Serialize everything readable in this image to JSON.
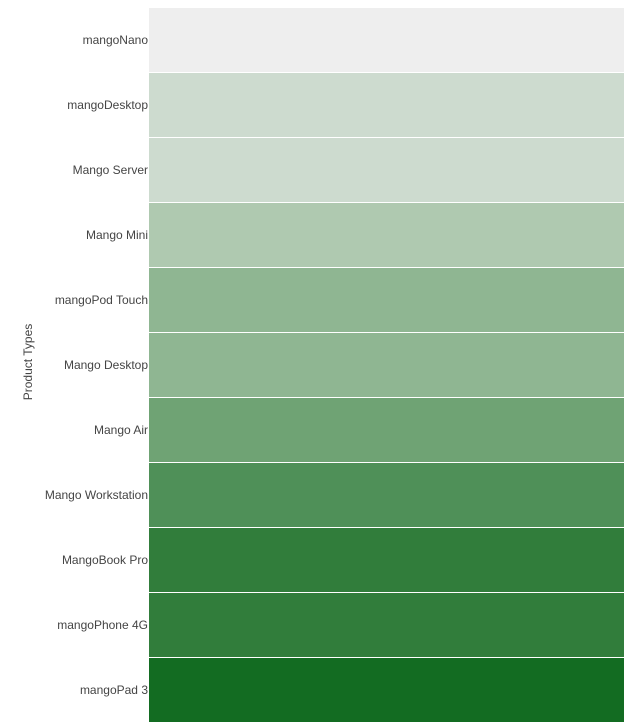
{
  "chart_data": {
    "type": "heatmap",
    "title": "",
    "xlabel": "",
    "ylabel": "Product Types",
    "categories": [
      "mangoNano",
      "mangoDesktop",
      "Mango Server",
      "Mango Mini",
      "mangoPod Touch",
      "Mango Desktop",
      "Mango Air",
      "Mango Workstation",
      "MangoBook Pro",
      "mangoPhone 4G",
      "mangoPad 3"
    ],
    "values": [
      0,
      1,
      1,
      2,
      3,
      3,
      4,
      5,
      6,
      6,
      7
    ],
    "color_scale": [
      "#eeeeee",
      "#cddbcf",
      "#afc9b0",
      "#8fb692",
      "#6fa374",
      "#4f9058",
      "#317d3b",
      "#136c22"
    ],
    "grid": false,
    "legend": "none"
  }
}
